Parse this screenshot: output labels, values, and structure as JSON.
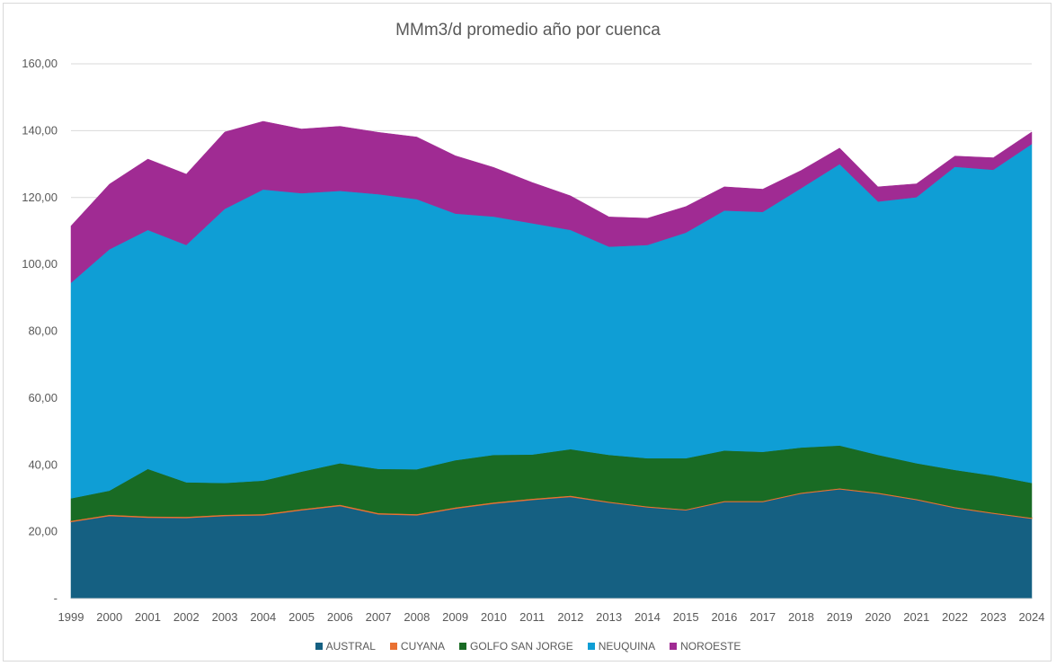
{
  "chart_data": {
    "type": "area",
    "stacked": true,
    "title": "MMm3/d promedio año por cuenca",
    "xlabel": "",
    "ylabel": "",
    "ylim": [
      0,
      160
    ],
    "y_ticks": [
      0,
      20,
      40,
      60,
      80,
      100,
      120,
      140,
      160
    ],
    "y_tick_labels": [
      "-",
      "20,00",
      "40,00",
      "60,00",
      "80,00",
      "100,00",
      "120,00",
      "140,00",
      "160,00"
    ],
    "grid": true,
    "legend_position": "bottom",
    "categories": [
      "1999",
      "2000",
      "2001",
      "2002",
      "2003",
      "2004",
      "2005",
      "2006",
      "2007",
      "2008",
      "2009",
      "2010",
      "2011",
      "2012",
      "2013",
      "2014",
      "2015",
      "2016",
      "2017",
      "2018",
      "2019",
      "2020",
      "2021",
      "2022",
      "2023",
      "2024"
    ],
    "series": [
      {
        "name": "AUSTRAL",
        "color": "#156082",
        "values": [
          23.0,
          24.8,
          24.3,
          24.2,
          24.8,
          25.0,
          26.5,
          27.8,
          25.3,
          25.0,
          27.0,
          28.5,
          29.6,
          30.5,
          28.8,
          27.4,
          26.5,
          29.0,
          29.0,
          31.5,
          32.8,
          31.5,
          29.6,
          27.2,
          25.5,
          24.0
        ]
      },
      {
        "name": "CUYANA",
        "color": "#E97132",
        "values": [
          0.3,
          0.3,
          0.3,
          0.3,
          0.3,
          0.3,
          0.3,
          0.3,
          0.3,
          0.3,
          0.3,
          0.3,
          0.3,
          0.3,
          0.2,
          0.2,
          0.2,
          0.2,
          0.2,
          0.2,
          0.2,
          0.2,
          0.2,
          0.2,
          0.2,
          0.2
        ]
      },
      {
        "name": "GOLFO SAN JORGE",
        "color": "#196B24",
        "values": [
          6.7,
          7.2,
          14.2,
          10.3,
          9.5,
          10.0,
          11.2,
          12.4,
          13.2,
          13.4,
          14.1,
          14.2,
          13.2,
          13.9,
          14.0,
          14.4,
          15.3,
          15.1,
          14.7,
          13.5,
          12.8,
          11.3,
          10.7,
          11.1,
          11.1,
          10.4
        ]
      },
      {
        "name": "NEUQUINA",
        "color": "#0F9ED5",
        "values": [
          64.5,
          72.2,
          71.5,
          71.0,
          82.0,
          87.1,
          83.3,
          81.5,
          82.2,
          80.8,
          73.8,
          71.3,
          69.2,
          65.6,
          62.3,
          63.8,
          67.5,
          71.8,
          71.8,
          77.6,
          84.2,
          75.8,
          79.6,
          90.7,
          91.5,
          101.4
        ]
      },
      {
        "name": "NOROESTE",
        "color": "#A02B93",
        "values": [
          17.0,
          19.5,
          21.2,
          21.2,
          23.0,
          20.4,
          19.2,
          19.3,
          18.5,
          18.6,
          17.3,
          14.7,
          12.2,
          10.2,
          8.9,
          8.0,
          7.8,
          7.1,
          6.8,
          5.3,
          4.8,
          4.4,
          4.0,
          3.2,
          3.6,
          3.6
        ]
      }
    ]
  }
}
